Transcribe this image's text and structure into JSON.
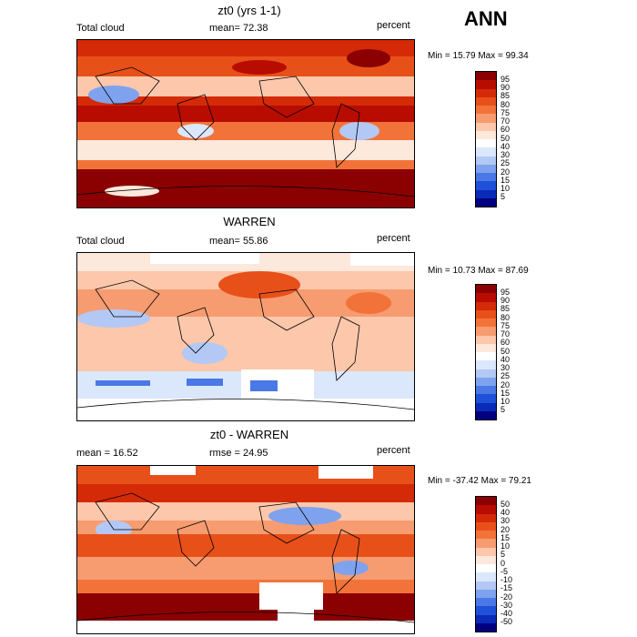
{
  "season": "ANN",
  "panels": [
    {
      "title": "zt0 (yrs 1-1)",
      "left_label": "Total cloud",
      "center_label": "mean=  72.38",
      "right_label": "percent",
      "minmax": "Min =  15.79 Max =  99.34",
      "levels": [
        "95",
        "90",
        "85",
        "80",
        "75",
        "70",
        "60",
        "50",
        "40",
        "30",
        "25",
        "20",
        "15",
        "10",
        "5"
      ]
    },
    {
      "title": "WARREN",
      "left_label": "Total cloud",
      "center_label": "mean=  55.86",
      "right_label": "percent",
      "minmax": "Min =  10.73 Max =  87.69",
      "levels": [
        "95",
        "90",
        "85",
        "80",
        "75",
        "70",
        "60",
        "50",
        "40",
        "30",
        "25",
        "20",
        "15",
        "10",
        "5"
      ]
    },
    {
      "title": "zt0 - WARREN",
      "left_label": "mean =  16.52",
      "center_label": "rmse =  24.95",
      "right_label": "percent",
      "minmax": "Min = -37.42 Max =  79.21",
      "levels": [
        "50",
        "40",
        "30",
        "20",
        "15",
        "10",
        "5",
        "0",
        "-5",
        "-10",
        "-15",
        "-20",
        "-30",
        "-40",
        "-50"
      ]
    }
  ],
  "colors": {
    "scale": [
      "#8b0000",
      "#b80c00",
      "#d42a08",
      "#e8501a",
      "#f27339",
      "#f79c70",
      "#fcc7aa",
      "#fde8dc",
      "#ffffff",
      "#dbe7fb",
      "#b3c8f5",
      "#7fa2ee",
      "#4a78e6",
      "#1f50d9",
      "#0a2ab8",
      "#000080"
    ]
  }
}
